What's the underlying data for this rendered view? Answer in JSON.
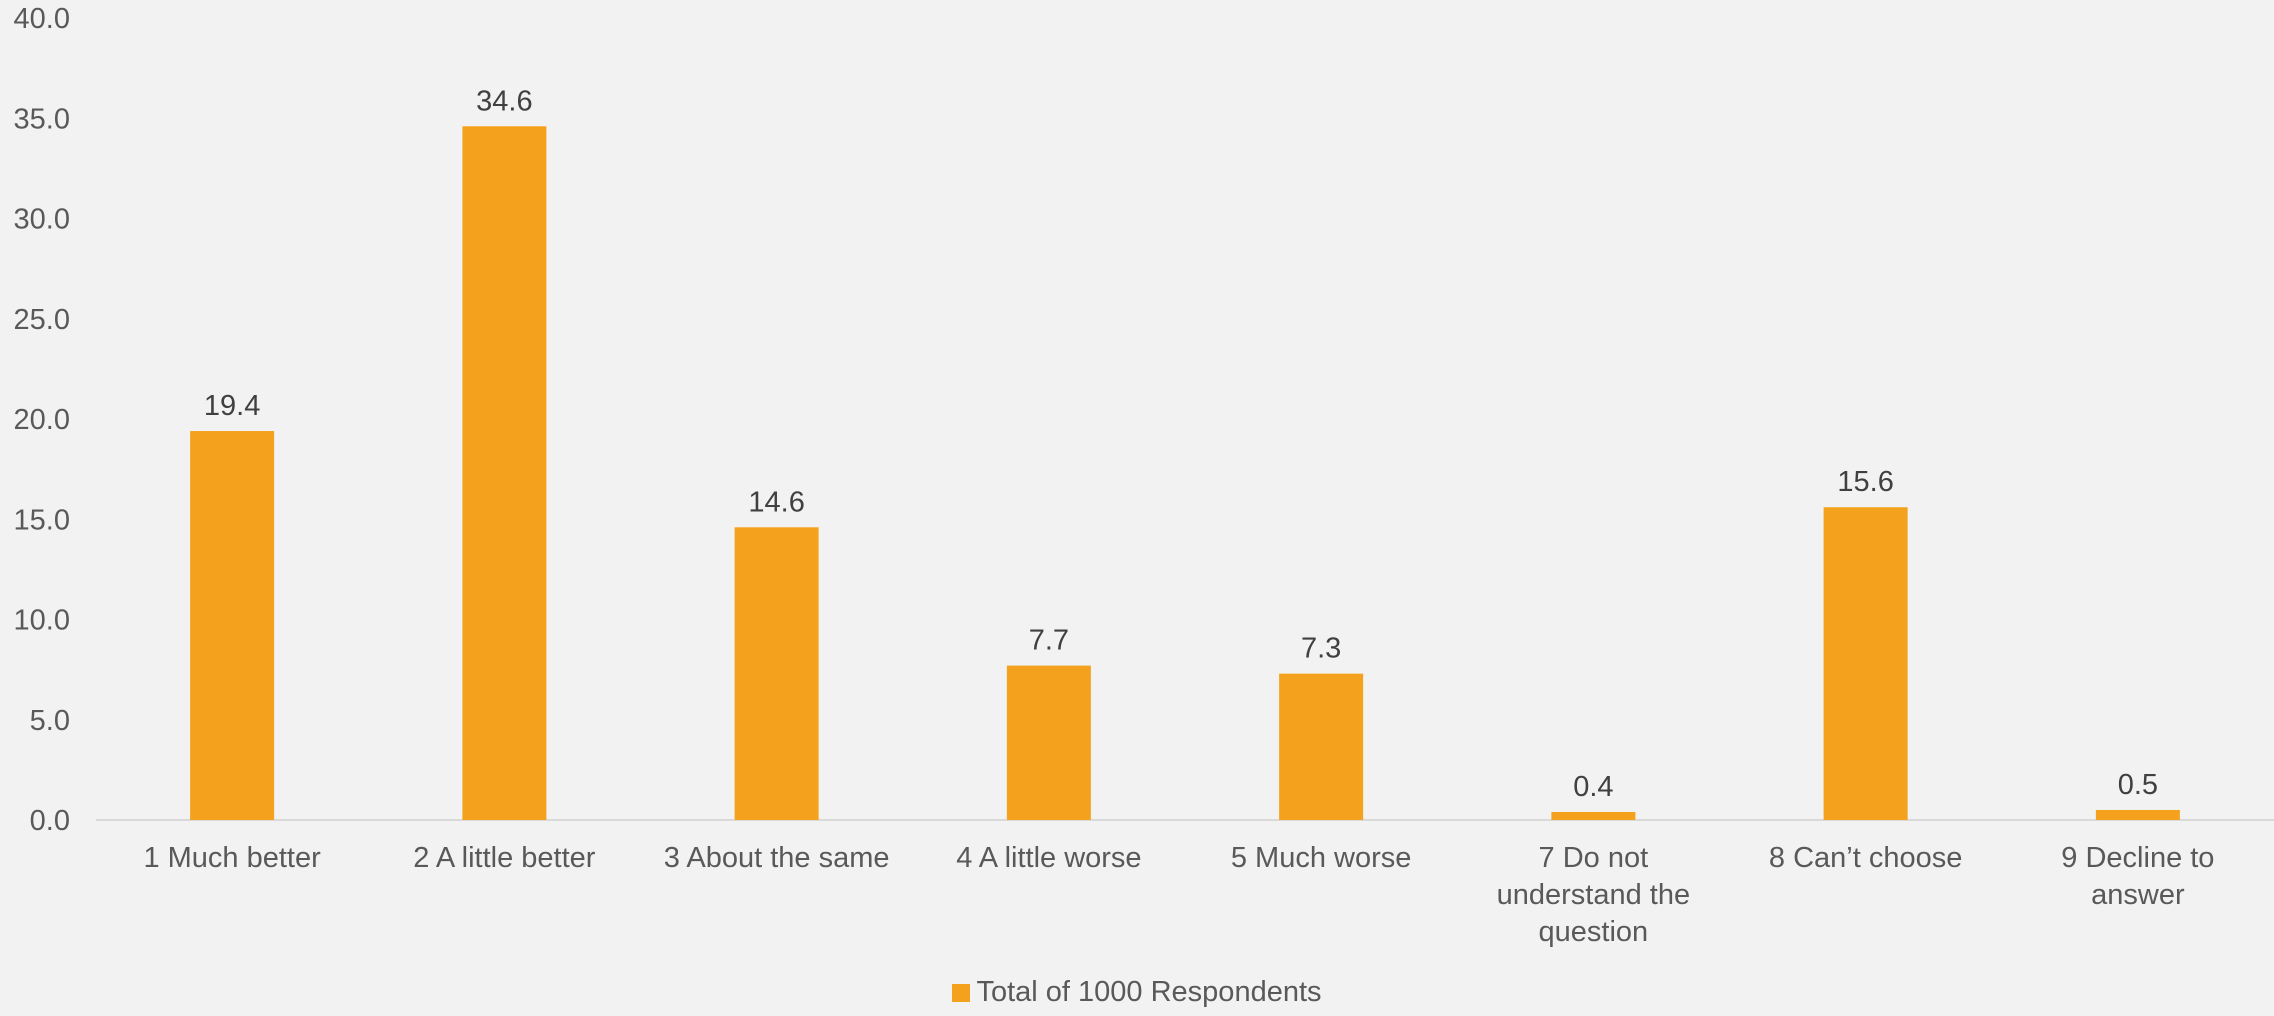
{
  "chart_data": {
    "type": "bar",
    "title": "",
    "xlabel": "",
    "ylabel": "",
    "ylim": [
      0,
      40
    ],
    "yticks": [
      "0.0",
      "5.0",
      "10.0",
      "15.0",
      "20.0",
      "25.0",
      "30.0",
      "35.0",
      "40.0"
    ],
    "grid": false,
    "legend_position": "bottom",
    "categories": [
      "1 Much better",
      "2 A little better",
      "3 About the same",
      "4 A little worse",
      "5 Much worse",
      "7 Do not understand the question",
      "8 Can’t choose",
      "9 Decline to answer"
    ],
    "series": [
      {
        "name": "Total of 1000 Respondents",
        "values": [
          19.4,
          34.6,
          14.6,
          7.7,
          7.3,
          0.4,
          15.6,
          0.5
        ],
        "labels": [
          "19.4",
          "34.6",
          "14.6",
          "7.7",
          "7.3",
          "0.4",
          "15.6",
          "0.5"
        ],
        "color": "#f4a21e"
      }
    ],
    "colors": {
      "bar": "#f4a21e",
      "text": "#595959",
      "data_label": "#404040",
      "axis": "#d9d9d9",
      "background": "#f2f2f2"
    }
  }
}
